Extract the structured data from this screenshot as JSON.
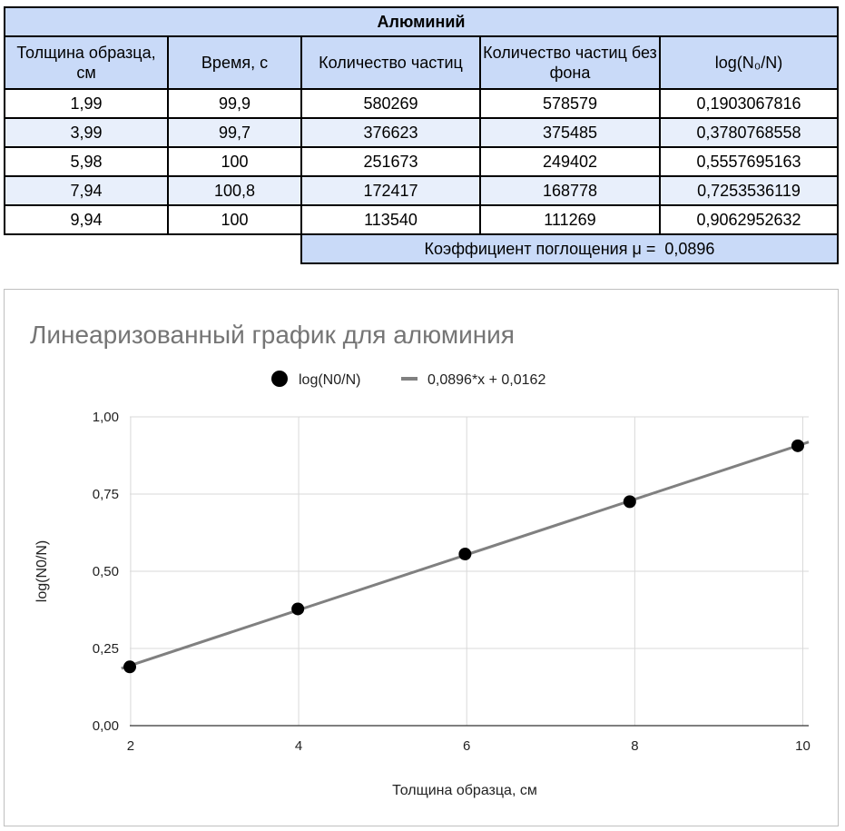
{
  "table": {
    "title": "Алюминий",
    "headers": [
      "Толщина образца, см",
      "Время, с",
      "Количество частиц",
      "Количество частиц без фона",
      "log(N₀/N)"
    ],
    "rows": [
      [
        "1,99",
        "99,9",
        "580269",
        "578579",
        "0,1903067816"
      ],
      [
        "3,99",
        "99,7",
        "376623",
        "375485",
        "0,3780768558"
      ],
      [
        "5,98",
        "100",
        "251673",
        "249402",
        "0,5557695163"
      ],
      [
        "7,94",
        "100,8",
        "172417",
        "168778",
        "0,7253536119"
      ],
      [
        "9,94",
        "100",
        "113540",
        "111269",
        "0,9062952632"
      ]
    ],
    "coefficient_label": "Коэффициент поглощения μ =",
    "coefficient_value": "0,0896"
  },
  "chart_data": {
    "type": "scatter",
    "title": "Линеаризованный график для алюминия",
    "xlabel": "Толщина образца, см",
    "ylabel": "log(N0/N)",
    "xlim": [
      1.99,
      10.07
    ],
    "ylim": [
      0,
      1
    ],
    "x_ticks": [
      2,
      4,
      6,
      8,
      10
    ],
    "x_tick_labels": [
      "2",
      "4",
      "6",
      "8",
      "10"
    ],
    "y_ticks": [
      0,
      0.25,
      0.5,
      0.75,
      1
    ],
    "y_tick_labels": [
      "0,00",
      "0,25",
      "0,50",
      "0,75",
      "1,00"
    ],
    "grid": true,
    "legend_position": "top",
    "series": [
      {
        "name": "log(N0/N)",
        "kind": "points",
        "color": "#000000",
        "x": [
          1.99,
          3.99,
          5.98,
          7.94,
          9.94
        ],
        "y": [
          0.1903067816,
          0.3780768558,
          0.5557695163,
          0.7253536119,
          0.9062952632
        ]
      },
      {
        "name": "0,0896*x + 0,0162",
        "kind": "trendline",
        "color": "#808080",
        "slope": 0.0896,
        "intercept": 0.0162,
        "x_range": [
          1.89,
          10.07
        ]
      }
    ]
  }
}
